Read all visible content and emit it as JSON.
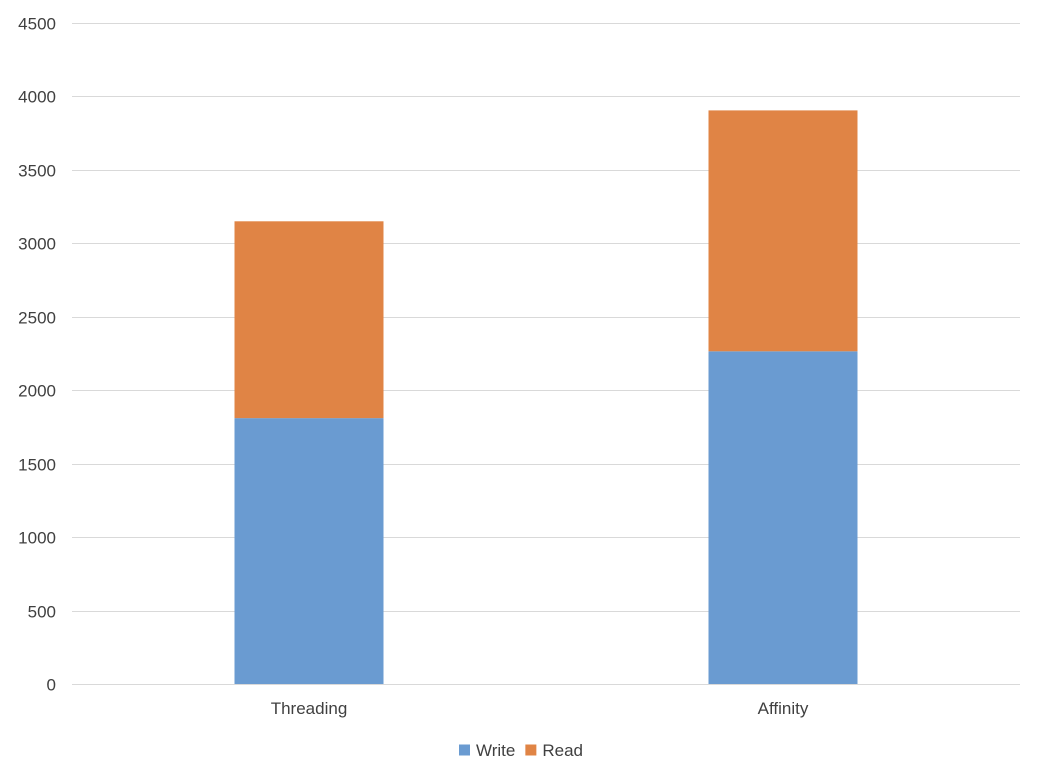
{
  "chart_data": {
    "type": "bar",
    "stacked": true,
    "title": "",
    "xlabel": "",
    "ylabel": "",
    "categories": [
      "Threading",
      "Affinity"
    ],
    "series": [
      {
        "name": "Write",
        "values": [
          1810,
          2265
        ],
        "color": "#6a9bd1"
      },
      {
        "name": "Read",
        "values": [
          1340,
          1640
        ],
        "color": "#e08445"
      }
    ],
    "ylim": [
      0,
      4500
    ],
    "yticks": [
      0,
      500,
      1000,
      1500,
      2000,
      2500,
      3000,
      3500,
      4000,
      4500
    ],
    "grid": true,
    "legend": "bottom",
    "gridline_color": "#d9d9d9"
  }
}
